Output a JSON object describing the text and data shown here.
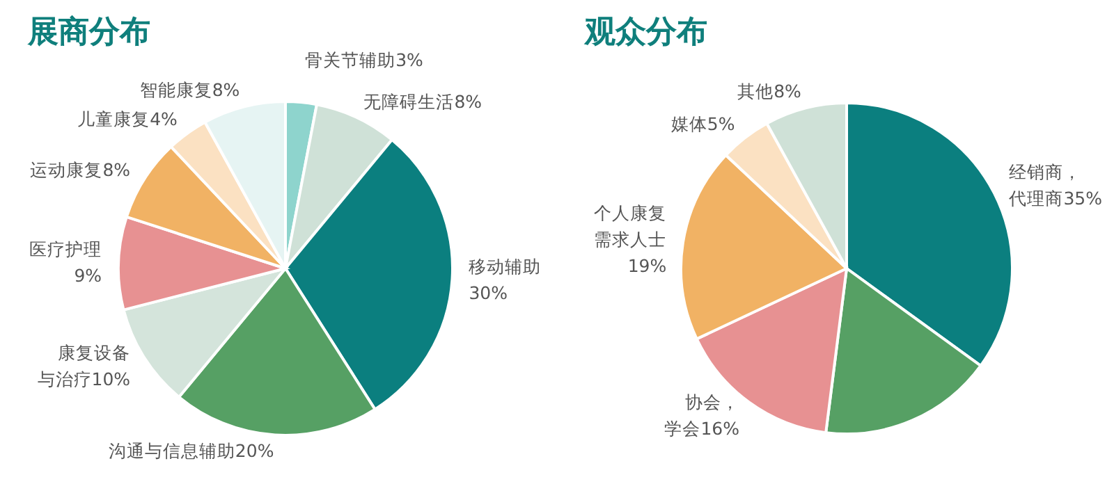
{
  "chart_data": [
    {
      "type": "pie",
      "title": "展商分布",
      "categories": [
        "骨关节辅助3%",
        "无障碍生活8%",
        "移动辅助30%",
        "沟通与信息辅助20%",
        "康复设备与治疗10%",
        "医疗护理9%",
        "运动康复8%",
        "儿童康复4%",
        "智能康复8%"
      ],
      "values": [
        3,
        8,
        30,
        20,
        10,
        9,
        8,
        4,
        8
      ],
      "colors": [
        "#8ed4cd",
        "#cfe1d7",
        "#0b7f7f",
        "#56a064",
        "#d4e4db",
        "#e79192",
        "#f1b264",
        "#fbe1c2",
        "#e6f4f3"
      ]
    },
    {
      "type": "pie",
      "title": "观众分布",
      "categories": [
        "经销商，代理商35%",
        null,
        "协会，学会16%",
        "个人康复需求人士19%",
        "媒体5%",
        "其他8%"
      ],
      "values": [
        35,
        17,
        16,
        19,
        5,
        8
      ],
      "colors": [
        "#0b7f7f",
        "#56a064",
        "#e79192",
        "#f1b264",
        "#fbe1c2",
        "#cfe1d7"
      ]
    }
  ]
}
